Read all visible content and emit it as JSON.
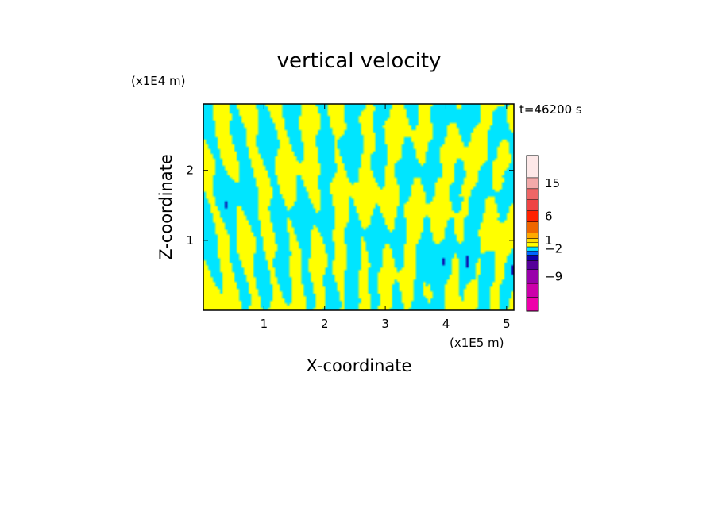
{
  "chart_data": {
    "type": "heatmap",
    "title": "vertical velocity",
    "xlabel": "X-coordinate",
    "ylabel": "Z-coordinate",
    "x_unit": "(x1E5 m)",
    "z_unit": "(x1E4 m)",
    "time_label": "t=46200 s",
    "xlim": [
      0,
      5.12
    ],
    "zlim": [
      0,
      2.95
    ],
    "x_ticks": [
      "1",
      "2",
      "3",
      "4",
      "5"
    ],
    "z_ticks": [
      "1",
      "2"
    ],
    "colorbar": {
      "levels": [
        {
          "color": "#ee00aa"
        },
        {
          "color": "#cc00aa"
        },
        {
          "color": "#9900aa"
        },
        {
          "color": "#550099"
        },
        {
          "color": "#1100aa"
        },
        {
          "color": "#0066ff"
        },
        {
          "color": "#00e5ff"
        },
        {
          "color": "#ffff00"
        },
        {
          "color": "#ffdd00"
        },
        {
          "color": "#ffaa00"
        },
        {
          "color": "#ee6600"
        },
        {
          "color": "#ff2200"
        },
        {
          "color": "#ee4444"
        },
        {
          "color": "#ee6666"
        },
        {
          "color": "#f2aaaa"
        },
        {
          "color": "#fde8e8"
        }
      ],
      "labels": [
        {
          "text": "15",
          "level": 14
        },
        {
          "text": "6",
          "level": 11
        },
        {
          "text": "1",
          "level": 8
        },
        {
          "text": "−2",
          "level": 6
        },
        {
          "text": "−9",
          "level": 2
        }
      ]
    },
    "field_colors": {
      "positive": "#ffff00",
      "negative": "#00e5ff",
      "strong_negative": "#1100aa"
    }
  }
}
